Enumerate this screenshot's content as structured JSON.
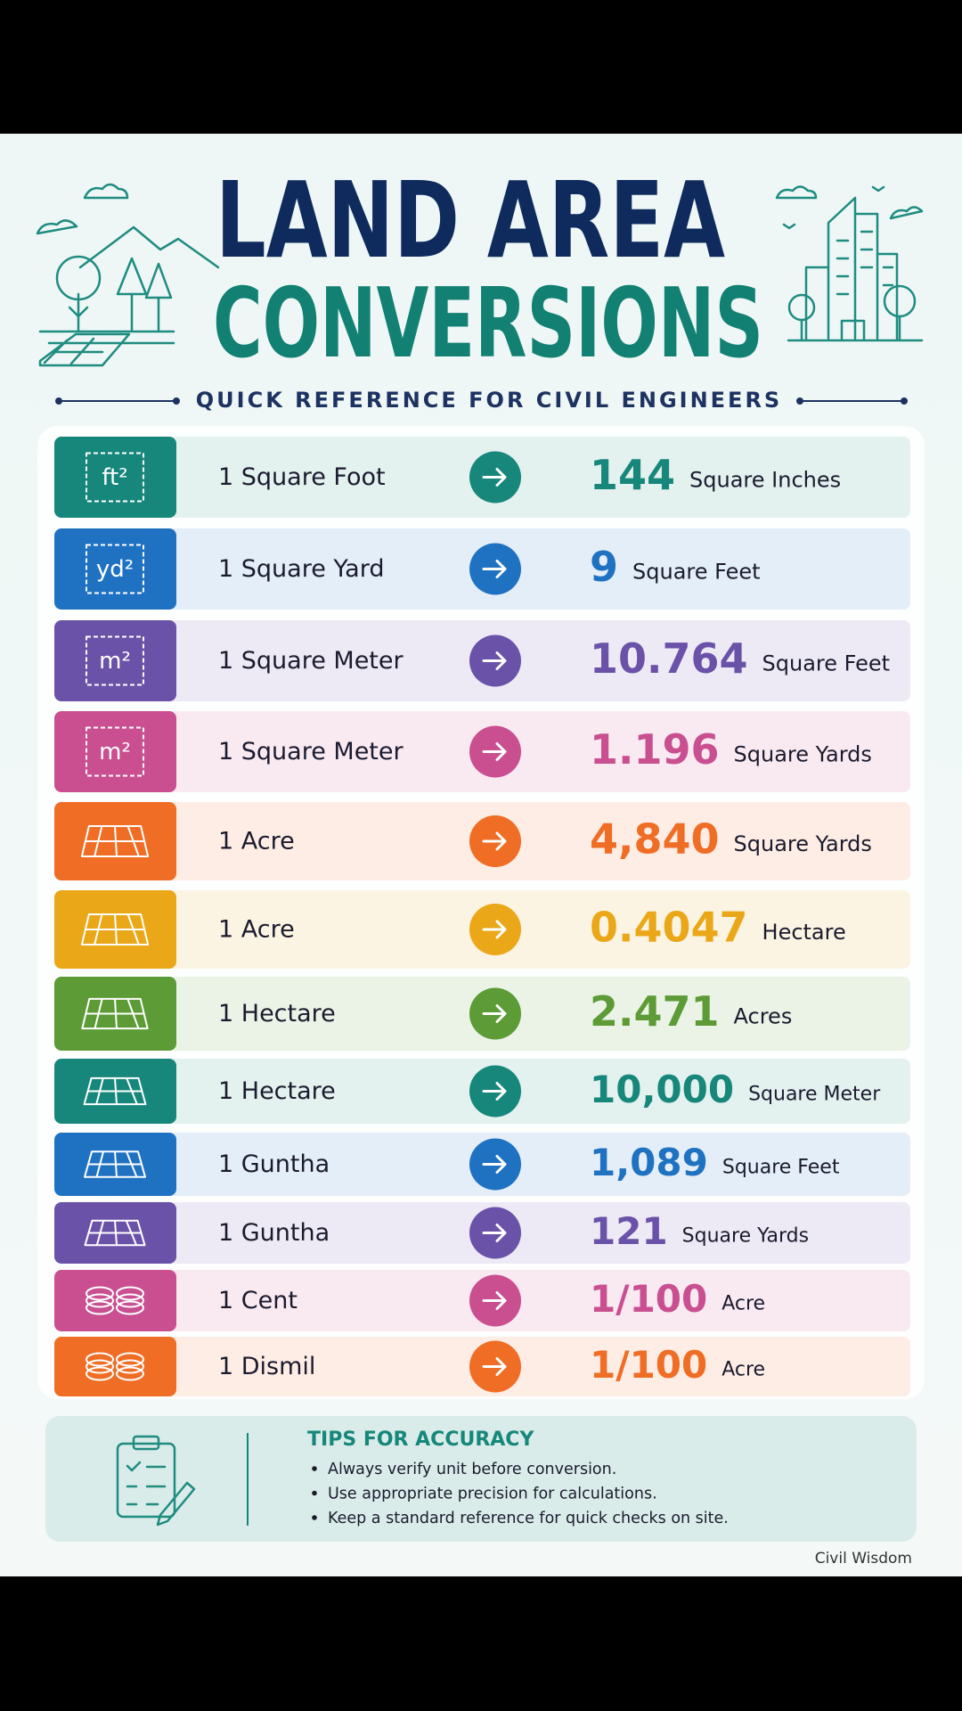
{
  "header": {
    "title_line1": "LAND AREA",
    "title_line2": "CONVERSIONS",
    "subtitle": "QUICK REFERENCE FOR CIVIL ENGINEERS"
  },
  "table": {
    "rows": [
      {
        "icon": "ft²",
        "from": "1 Square Foot",
        "value": "144",
        "unit": "Square Inches",
        "color": "#17877b"
      },
      {
        "icon": "yd²",
        "from": "1 Square Yard",
        "value": "9",
        "unit": "Square Feet",
        "color": "#1f72c2"
      },
      {
        "icon": "m²",
        "from": "1 Square Meter",
        "value": "10.764",
        "unit": "Square Feet",
        "color": "#6a52a8"
      },
      {
        "icon": "m²",
        "from": "1 Square Meter",
        "value": "1.196",
        "unit": "Square Yards",
        "color": "#c94f90"
      },
      {
        "from": "1 Acre",
        "value": "4,840",
        "unit": "Square Yards",
        "color": "#ef6d24"
      },
      {
        "from": "1 Acre",
        "value": "0.4047",
        "unit": "Hectare",
        "color": "#eaa718"
      },
      {
        "from": "1 Hectare",
        "value": "2.471",
        "unit": "Acres",
        "color": "#5c9b35"
      },
      {
        "from": "1 Hectare",
        "value": "10,000",
        "unit": "Square Meter",
        "color": "#17877b"
      },
      {
        "from": "1 Guntha",
        "value": "1,089",
        "unit": "Square Feet",
        "color": "#1f72c2"
      },
      {
        "from": "1 Guntha",
        "value": "121",
        "unit": "Square Yards",
        "color": "#6a52a8"
      },
      {
        "from": "1 Cent",
        "value": "1/100",
        "unit": "Acre",
        "color": "#c94f90"
      },
      {
        "from": "1 Dismil",
        "value": "1/100",
        "unit": "Acre",
        "color": "#ef6d24"
      }
    ]
  },
  "tips": {
    "title": "TIPS FOR ACCURACY",
    "items": [
      "Always verify unit before conversion.",
      "Use appropriate precision for calculations.",
      "Keep a standard reference for quick checks on site."
    ]
  },
  "footer": {
    "credit": "Civil Wisdom"
  }
}
